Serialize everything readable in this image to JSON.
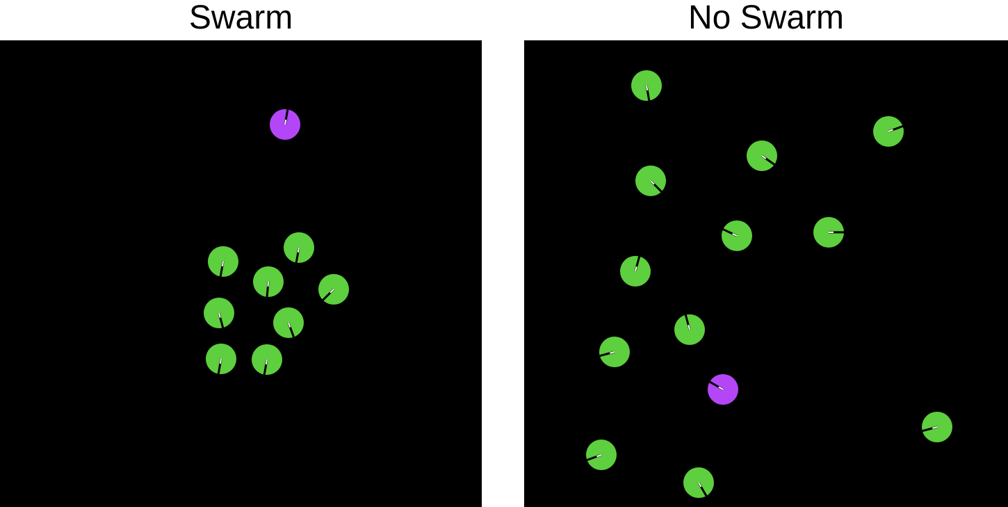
{
  "panels": [
    {
      "title": "Swarm",
      "agents": [
        {
          "role": "target",
          "color": "#b347f7",
          "heading_deg": 280
        },
        {
          "role": "follower",
          "color": "#5ecf3e",
          "heading_deg": 100
        },
        {
          "role": "follower",
          "color": "#5ecf3e",
          "heading_deg": 95
        },
        {
          "role": "follower",
          "color": "#5ecf3e",
          "heading_deg": 100
        },
        {
          "role": "follower",
          "color": "#5ecf3e",
          "heading_deg": 135
        },
        {
          "role": "follower",
          "color": "#5ecf3e",
          "heading_deg": 75
        },
        {
          "role": "follower",
          "color": "#5ecf3e",
          "heading_deg": 70
        },
        {
          "role": "follower",
          "color": "#5ecf3e",
          "heading_deg": 100
        },
        {
          "role": "follower",
          "color": "#5ecf3e",
          "heading_deg": 100
        }
      ]
    },
    {
      "title": "No Swarm",
      "agents": [
        {
          "role": "target",
          "color": "#b347f7",
          "heading_deg": 210
        },
        {
          "role": "follower",
          "color": "#5ecf3e",
          "heading_deg": 80
        },
        {
          "role": "follower",
          "color": "#5ecf3e",
          "heading_deg": 340
        },
        {
          "role": "follower",
          "color": "#5ecf3e",
          "heading_deg": 35
        },
        {
          "role": "follower",
          "color": "#5ecf3e",
          "heading_deg": 45
        },
        {
          "role": "follower",
          "color": "#5ecf3e",
          "heading_deg": 205
        },
        {
          "role": "follower",
          "color": "#5ecf3e",
          "heading_deg": 0
        },
        {
          "role": "follower",
          "color": "#5ecf3e",
          "heading_deg": 285
        },
        {
          "role": "follower",
          "color": "#5ecf3e",
          "heading_deg": 255
        },
        {
          "role": "follower",
          "color": "#5ecf3e",
          "heading_deg": 165
        },
        {
          "role": "follower",
          "color": "#5ecf3e",
          "heading_deg": 165
        },
        {
          "role": "follower",
          "color": "#5ecf3e",
          "heading_deg": 160
        },
        {
          "role": "follower",
          "color": "#5ecf3e",
          "heading_deg": 60
        }
      ]
    }
  ]
}
